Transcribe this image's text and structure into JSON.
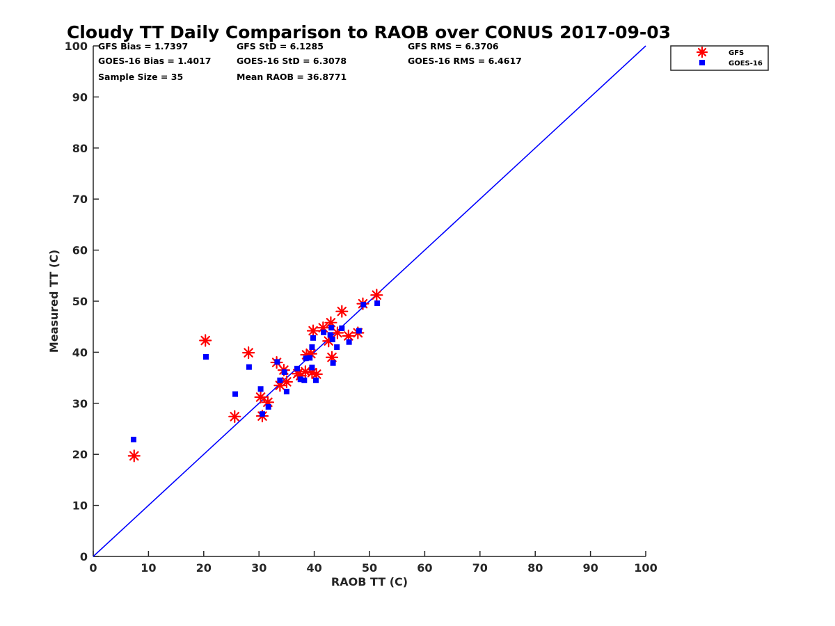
{
  "chart_data": {
    "type": "scatter",
    "title": "Cloudy TT Daily Comparison to RAOB over CONUS 2017-09-03",
    "xlabel": "RAOB TT (C)",
    "ylabel": "Measured TT (C)",
    "xlim": [
      0,
      100
    ],
    "ylim": [
      0,
      100
    ],
    "xticks": [
      "0",
      "10",
      "20",
      "30",
      "40",
      "50",
      "60",
      "70",
      "80",
      "90",
      "100"
    ],
    "yticks": [
      "0",
      "10",
      "20",
      "30",
      "40",
      "50",
      "60",
      "70",
      "80",
      "90",
      "100"
    ],
    "grid": false,
    "legend_position": "top-right outside",
    "stats": [
      "GFS Bias = 1.7397",
      "GFS StD = 6.1285",
      "GFS RMS = 6.3706",
      "GOES-16 Bias = 1.4017",
      "GOES-16 StD = 6.3078",
      "GOES-16 RMS = 6.4617",
      "Sample Size = 35",
      "Mean RAOB = 36.8771"
    ],
    "reference_line": {
      "from": [
        0,
        0
      ],
      "to": [
        100,
        100
      ],
      "color": "#0000ff"
    },
    "series": [
      {
        "name": "GFS",
        "marker": "asterisk",
        "color": "#ff0000",
        "points": [
          [
            7.4,
            19.7
          ],
          [
            20.3,
            42.3
          ],
          [
            25.6,
            27.4
          ],
          [
            28.1,
            39.9
          ],
          [
            30.3,
            31.2
          ],
          [
            30.6,
            27.5
          ],
          [
            31.6,
            30.2
          ],
          [
            33.2,
            38.0
          ],
          [
            33.8,
            33.5
          ],
          [
            34.5,
            36.5
          ],
          [
            35.0,
            34.2
          ],
          [
            37.0,
            35.8
          ],
          [
            37.5,
            35.4
          ],
          [
            38.4,
            36.2
          ],
          [
            38.6,
            39.5
          ],
          [
            39.4,
            39.7
          ],
          [
            39.6,
            36.0
          ],
          [
            39.8,
            44.2
          ],
          [
            40.4,
            35.7
          ],
          [
            41.6,
            44.8
          ],
          [
            42.6,
            42.2
          ],
          [
            43.0,
            45.8
          ],
          [
            43.2,
            39.0
          ],
          [
            44.2,
            43.8
          ],
          [
            45.0,
            48.0
          ],
          [
            46.2,
            43.2
          ],
          [
            47.9,
            43.8
          ],
          [
            48.8,
            49.5
          ],
          [
            51.3,
            51.2
          ]
        ]
      },
      {
        "name": "GOES-16",
        "marker": "square",
        "color": "#0000ff",
        "points": [
          [
            7.3,
            22.9
          ],
          [
            20.4,
            39.1
          ],
          [
            25.7,
            31.8
          ],
          [
            28.2,
            37.1
          ],
          [
            30.3,
            32.8
          ],
          [
            30.6,
            27.9
          ],
          [
            31.7,
            29.3
          ],
          [
            33.3,
            38.1
          ],
          [
            33.8,
            34.5
          ],
          [
            34.6,
            36.1
          ],
          [
            35.0,
            32.3
          ],
          [
            36.9,
            36.8
          ],
          [
            37.5,
            34.7
          ],
          [
            38.2,
            34.5
          ],
          [
            38.5,
            38.8
          ],
          [
            39.2,
            38.9
          ],
          [
            39.6,
            37.0
          ],
          [
            39.6,
            41.0
          ],
          [
            39.8,
            42.8
          ],
          [
            40.3,
            34.5
          ],
          [
            41.7,
            43.9
          ],
          [
            42.9,
            43.4
          ],
          [
            43.1,
            44.8
          ],
          [
            43.3,
            42.5
          ],
          [
            43.4,
            37.9
          ],
          [
            44.1,
            41.0
          ],
          [
            45.0,
            44.7
          ],
          [
            46.3,
            42.0
          ],
          [
            48.1,
            44.2
          ],
          [
            48.9,
            49.3
          ],
          [
            51.4,
            49.6
          ]
        ]
      }
    ]
  },
  "colors": {
    "gfs": "#ff0000",
    "goes16": "#0000ff",
    "axis": "#262626",
    "reference_line": "#0000ff"
  }
}
